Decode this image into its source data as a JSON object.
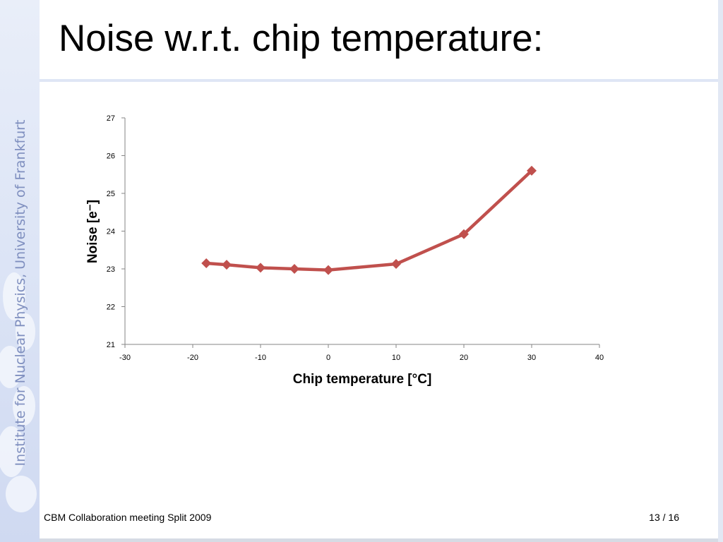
{
  "slide": {
    "title": "Noise w.r.t. chip temperature:",
    "sidebar_text": "Institute for Nuclear Physics, University of Frankfurt",
    "footer_left": "CBM Collaboration meeting Split 2009",
    "footer_right": "13 / 16"
  },
  "chart_data": {
    "type": "line",
    "title": "",
    "xlabel": "Chip temperature [°C]",
    "ylabel": "Noise [e⁻]",
    "xlim": [
      -30,
      40
    ],
    "ylim": [
      21,
      27
    ],
    "xticks": [
      -30,
      -20,
      -10,
      0,
      10,
      20,
      30,
      40
    ],
    "yticks": [
      21,
      22,
      23,
      24,
      25,
      26,
      27
    ],
    "grid": false,
    "legend": "none",
    "series": [
      {
        "color": "#c0504d",
        "marker": "diamond",
        "x": [
          -18,
          -15,
          -10,
          -5,
          0,
          10,
          20,
          30
        ],
        "y": [
          23.15,
          23.11,
          23.03,
          23.0,
          22.97,
          23.13,
          23.92,
          25.6
        ]
      }
    ]
  }
}
